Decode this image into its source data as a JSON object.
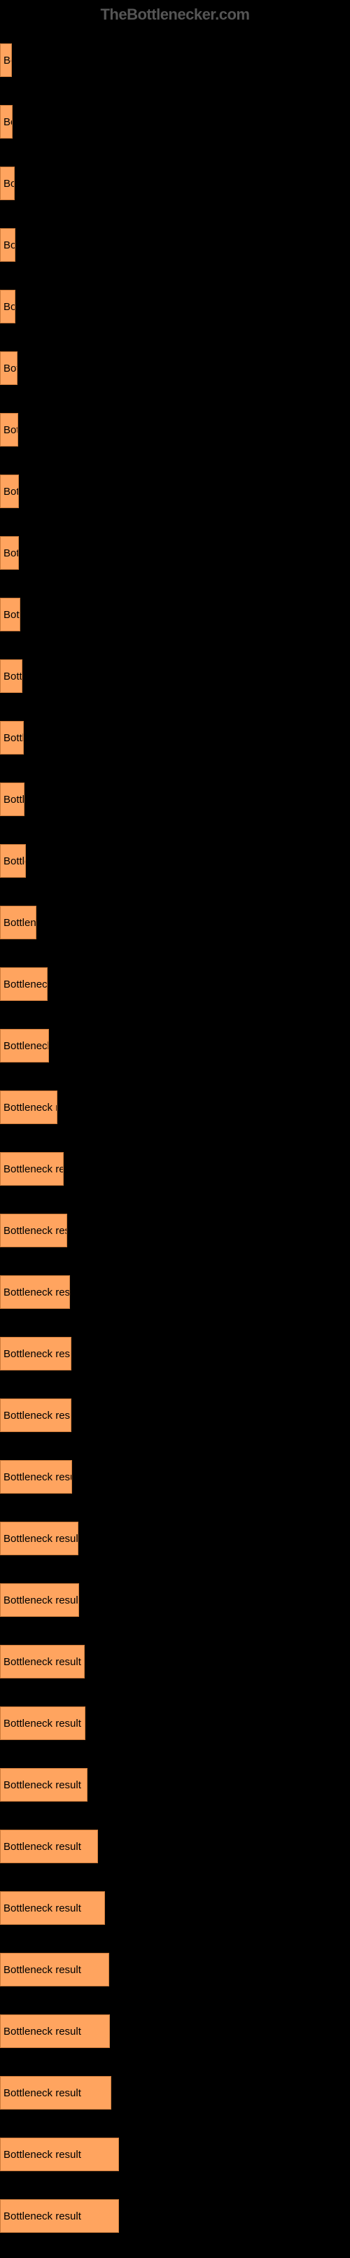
{
  "watermark": "TheBottlenecker.com",
  "chart": {
    "type": "bar",
    "orientation": "horizontal",
    "background_color": "#000000",
    "bar_color": "#ffa45f",
    "bar_border_color": "#cc7a3a",
    "text_color": "#ffffff",
    "bar_text_color": "#000000",
    "bar_label": "Bottleneck result",
    "font_size": 15,
    "max_width": 170,
    "bars": [
      {
        "width": 17
      },
      {
        "width": 18
      },
      {
        "width": 21
      },
      {
        "width": 22
      },
      {
        "width": 22
      },
      {
        "width": 25
      },
      {
        "width": 26
      },
      {
        "width": 27
      },
      {
        "width": 27
      },
      {
        "width": 29
      },
      {
        "width": 32
      },
      {
        "width": 34
      },
      {
        "width": 35
      },
      {
        "width": 37
      },
      {
        "width": 52
      },
      {
        "width": 68
      },
      {
        "width": 70
      },
      {
        "width": 82
      },
      {
        "width": 91
      },
      {
        "width": 96
      },
      {
        "width": 100
      },
      {
        "width": 102
      },
      {
        "width": 102
      },
      {
        "width": 103
      },
      {
        "width": 112
      },
      {
        "width": 113
      },
      {
        "width": 121
      },
      {
        "width": 122
      },
      {
        "width": 125
      },
      {
        "width": 140
      },
      {
        "width": 150
      },
      {
        "width": 156
      },
      {
        "width": 157
      },
      {
        "width": 159
      },
      {
        "width": 170
      },
      {
        "width": 170
      }
    ]
  }
}
